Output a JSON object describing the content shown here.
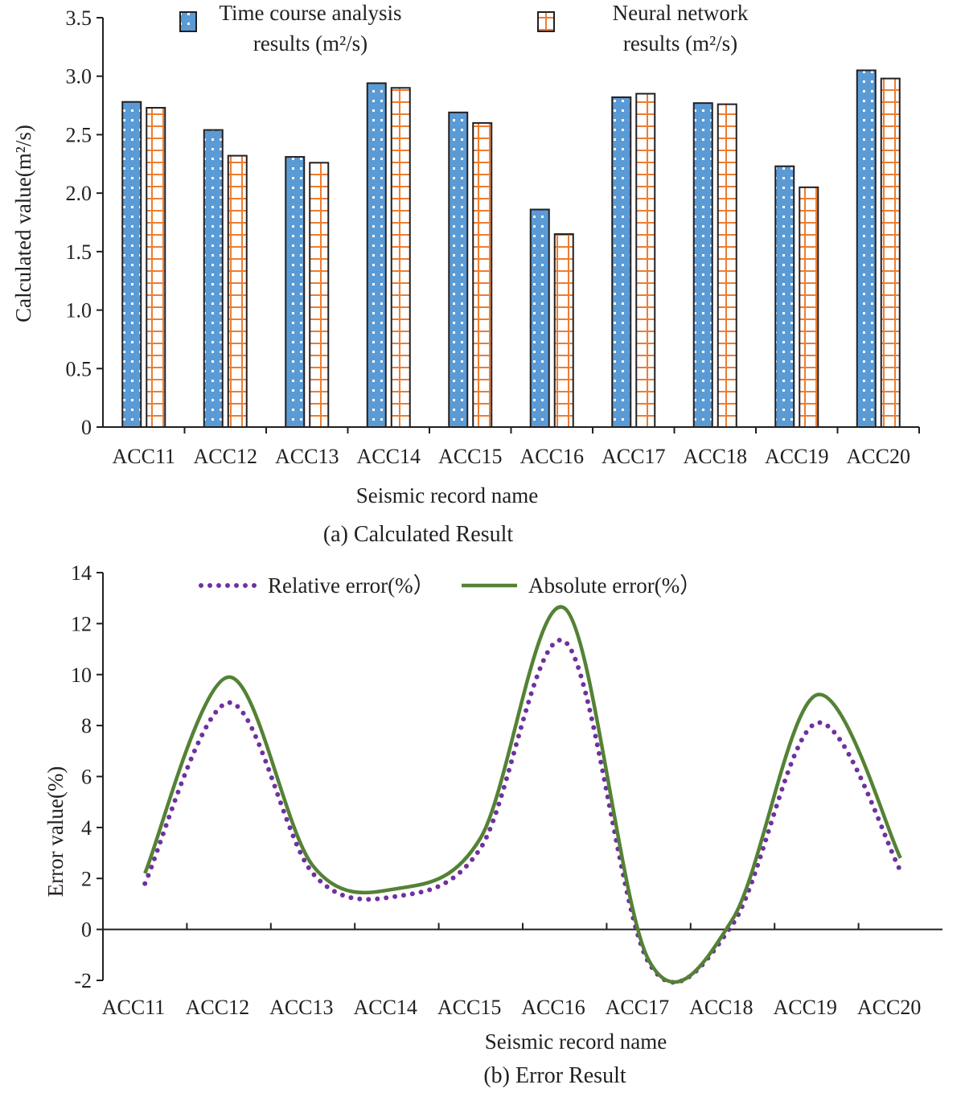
{
  "chart_data": [
    {
      "type": "bar",
      "caption": "(a) Calculated Result",
      "xlabel": "Seismic record name",
      "ylabel": "Calculated value(m²/s)",
      "ylim": [
        0,
        3.5
      ],
      "yticks": [
        "0",
        "0.5",
        "1.0",
        "1.5",
        "2.0",
        "2.5",
        "3.0",
        "3.5"
      ],
      "grid": false,
      "legend_position": "top",
      "categories": [
        "ACC11",
        "ACC12",
        "ACC13",
        "ACC14",
        "ACC15",
        "ACC16",
        "ACC17",
        "ACC18",
        "ACC19",
        "ACC20"
      ],
      "series": [
        {
          "name": "Time course analysis results (m²/s)",
          "legend_lines": [
            "Time course analysis",
            "results (m²/s)"
          ],
          "color": "#5b9bd5",
          "pattern": "white-dots",
          "values": [
            2.78,
            2.54,
            2.31,
            2.94,
            2.69,
            1.86,
            2.82,
            2.77,
            2.23,
            3.05
          ]
        },
        {
          "name": "Neural network results (m²/s)",
          "legend_lines": [
            "Neural network",
            "results (m²/s)"
          ],
          "color": "#ed7d31",
          "pattern": "orange-grid",
          "values": [
            2.73,
            2.32,
            2.26,
            2.9,
            2.6,
            1.65,
            2.85,
            2.76,
            2.05,
            2.98
          ]
        }
      ]
    },
    {
      "type": "line",
      "caption": "(b) Error Result",
      "xlabel": "Seismic record name",
      "ylabel": "Error value(%)",
      "ylim": [
        -2,
        14
      ],
      "yticks": [
        "-2",
        "0",
        "2",
        "4",
        "6",
        "8",
        "10",
        "12",
        "14"
      ],
      "grid": false,
      "legend_position": "top",
      "categories": [
        "ACC11",
        "ACC12",
        "ACC13",
        "ACC14",
        "ACC15",
        "ACC16",
        "ACC17",
        "ACC18",
        "ACC19",
        "ACC20"
      ],
      "series": [
        {
          "name": "Relative error(%）",
          "color": "#7030a0",
          "style": "dotted",
          "x": [
            0,
            1,
            2,
            3,
            4,
            5,
            6,
            7,
            8,
            9
          ],
          "values": [
            1.8,
            8.9,
            2.2,
            1.3,
            3.2,
            11.3,
            -1.3,
            0.2,
            8.1,
            2.3
          ]
        },
        {
          "name": "Absolute error(%）",
          "color": "#548235",
          "style": "solid",
          "x": [
            0,
            1,
            2,
            3,
            4,
            5,
            6,
            7,
            8,
            9
          ],
          "values": [
            2.2,
            9.9,
            2.5,
            1.6,
            3.6,
            12.6,
            -1.2,
            0.4,
            9.2,
            2.8
          ]
        }
      ]
    }
  ]
}
